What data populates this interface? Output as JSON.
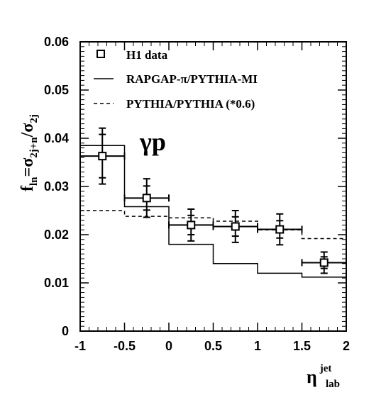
{
  "chart_data": {
    "type": "line",
    "title": "",
    "annotation": "γp",
    "xlabel": {
      "main": "η",
      "sup": "jet",
      "sub": "lab"
    },
    "ylabel": {
      "main": "f",
      "main_sub": "ln",
      "eq": "=σ",
      "eq_sub": "2j+n",
      "div": "/σ",
      "div_sub": "2j"
    },
    "xlim": [
      -1,
      2
    ],
    "ylim": [
      0,
      0.06
    ],
    "x_ticks": [
      -1,
      -0.5,
      0,
      0.5,
      1,
      1.5,
      2
    ],
    "x_tick_labels": [
      "-1",
      "-0.5",
      "0",
      "0.5",
      "1",
      "1.5",
      "2"
    ],
    "y_ticks": [
      0,
      0.01,
      0.02,
      0.03,
      0.04,
      0.05,
      0.06
    ],
    "y_tick_labels": [
      "0",
      "0.01",
      "0.02",
      "0.03",
      "0.04",
      "0.05",
      "0.06"
    ],
    "legend": {
      "placement": "top-left",
      "entries": [
        "H1 data",
        "RAPGAP-π/PYTHIA-MI",
        "PYTHIA/PYTHIA (*0.6)"
      ]
    },
    "series": [
      {
        "name": "H1 data",
        "style": "markers",
        "x": [
          -0.75,
          -0.25,
          0.25,
          0.75,
          1.25,
          1.75
        ],
        "y": [
          0.0363,
          0.0276,
          0.022,
          0.0217,
          0.0211,
          0.0142
        ],
        "xerr": [
          0.25,
          0.25,
          0.25,
          0.25,
          0.25,
          0.25
        ],
        "yerr_stat": [
          0.0045,
          0.0025,
          0.002,
          0.002,
          0.0018,
          0.0012
        ],
        "yerr_tot": [
          0.0058,
          0.004,
          0.0033,
          0.0033,
          0.0032,
          0.0022
        ]
      },
      {
        "name": "RAPGAP-π/PYTHIA-MI",
        "style": "solid-histogram",
        "bin_edges": [
          -1,
          -0.5,
          0,
          0.5,
          1,
          1.5,
          2
        ],
        "values": [
          0.0385,
          0.0258,
          0.018,
          0.014,
          0.012,
          0.0112
        ]
      },
      {
        "name": "PYTHIA/PYTHIA (*0.6)",
        "style": "dashed-histogram",
        "bin_edges": [
          -1,
          -0.5,
          0,
          0.5,
          1,
          1.5,
          2
        ],
        "values": [
          0.025,
          0.0238,
          0.0235,
          0.0228,
          0.021,
          0.0192
        ]
      }
    ]
  }
}
